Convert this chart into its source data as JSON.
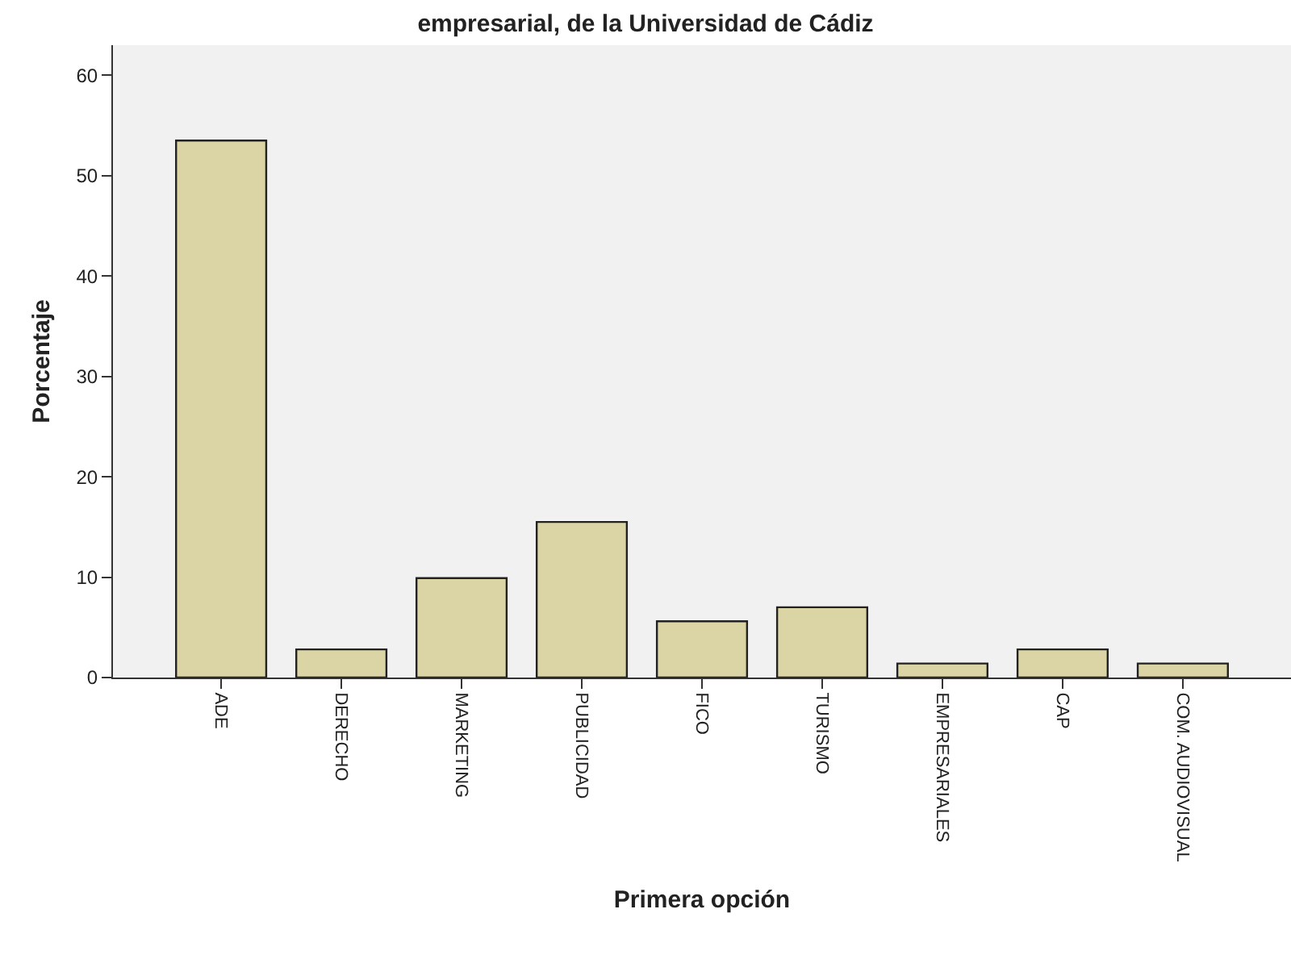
{
  "chart_data": {
    "type": "bar",
    "title": "empresarial, de la Universidad de Cádiz",
    "xlabel": "Primera opción",
    "ylabel": "Porcentaje",
    "categories": [
      "ADE",
      "DERECHO",
      "MARKETING",
      "PUBLICIDAD",
      "FICO",
      "TURISMO",
      "EMPRESARIALES",
      "CAP",
      "COM. AUDIOVISUAL"
    ],
    "values": [
      53.5,
      2.8,
      9.9,
      15.5,
      5.6,
      7.0,
      1.4,
      2.8,
      1.4
    ],
    "color": "#dbd5a6",
    "ylim": [
      0,
      63
    ],
    "yticks": [
      0,
      10,
      20,
      30,
      40,
      50,
      60
    ],
    "grid": false
  }
}
